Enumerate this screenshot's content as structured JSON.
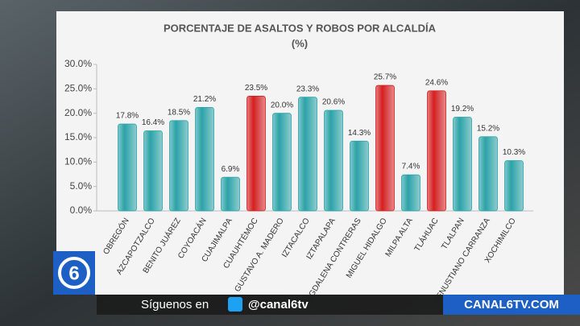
{
  "chart_data": {
    "type": "bar",
    "title": "PORCENTAJE DE ASALTOS Y ROBOS POR ALCALDÍA",
    "subtitle": "(%)",
    "categories": [
      "OBREGÓN",
      "AZCAPOTZALCO",
      "BENITO JUÁREZ",
      "COYOACÁN",
      "CUAJIMALPA",
      "CUAUHTÉMOC",
      "GUSTAVO A. MADERO",
      "IZTACALCO",
      "IZTAPALAPA",
      "MAGDALENA CONTRERAS",
      "MIGUEL HIDALGO",
      "MILPA ALTA",
      "TLÁHUAC",
      "TLALPAN",
      "VENUSTIANO CARRANZA",
      "XOCHIMILCO"
    ],
    "values": [
      17.8,
      16.4,
      18.5,
      21.2,
      6.9,
      23.5,
      20.0,
      23.3,
      20.6,
      14.3,
      25.7,
      7.4,
      24.6,
      19.2,
      15.2,
      10.3
    ],
    "value_labels": [
      "17.8%",
      "16.4%",
      "18.5%",
      "21.2%",
      "6.9%",
      "23.5%",
      "20.0%",
      "23.3%",
      "20.6%",
      "14.3%",
      "25.7%",
      "7.4%",
      "24.6%",
      "19.2%",
      "15.2%",
      "10.3%"
    ],
    "colors": [
      "#2aa3a8",
      "#2aa3a8",
      "#2aa3a8",
      "#2aa3a8",
      "#2aa3a8",
      "#d42020",
      "#2aa3a8",
      "#2aa3a8",
      "#2aa3a8",
      "#2aa3a8",
      "#d42020",
      "#2aa3a8",
      "#d42020",
      "#2aa3a8",
      "#2aa3a8",
      "#2aa3a8"
    ],
    "ylim": [
      0,
      30
    ],
    "yticks": [
      {
        "value": 0,
        "label": "0.0%"
      },
      {
        "value": 5,
        "label": "5.0%"
      },
      {
        "value": 10,
        "label": "10.0%"
      },
      {
        "value": 15,
        "label": "15.0%"
      },
      {
        "value": 20,
        "label": "20.0%"
      },
      {
        "value": 25,
        "label": "25.0%"
      },
      {
        "value": 30,
        "label": "30.0%"
      }
    ],
    "grid": false
  },
  "overlay": {
    "logo": "6",
    "follow": "Síguenos en",
    "handle": "@canal6tv",
    "website": "CANAL6TV.COM"
  }
}
